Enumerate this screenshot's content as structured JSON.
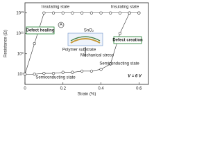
{
  "chart_data": {
    "type": "line",
    "x_label": "Strain (%)",
    "y_label": "Resistance (Ω)",
    "x": [
      0,
      0.05,
      0.1,
      0.15,
      0.2,
      0.25,
      0.3,
      0.35,
      0.4,
      0.45,
      0.5,
      0.55,
      0.6
    ],
    "series": [
      {
        "color": "#333333",
        "values": [
          10000000,
          10000000,
          12000000,
          12000000,
          15000000,
          15000000,
          20000000,
          20000000,
          30000000,
          100000000,
          100000000000,
          10000000000000,
          10000000000000
        ]
      },
      {
        "color": "#333333",
        "values": [
          10000000,
          10000000000,
          10000000000000,
          10000000000000,
          10000000000000,
          10000000000000,
          10000000000000,
          10000000000000,
          10000000000000,
          10000000000000,
          10000000000000,
          10000000000000,
          10000000000000
        ]
      }
    ],
    "log_y": true,
    "xlim": [
      0,
      0.65
    ],
    "xticks": [
      0,
      0.2,
      0.4,
      0.6
    ],
    "ylim": [
      1000000,
      100000000000000
    ],
    "yticks": [
      {
        "value": 10000000,
        "label": "10⁷"
      },
      {
        "value": 1000000000,
        "label": "10⁹"
      },
      {
        "value": 100000000000,
        "label": "10¹¹"
      },
      {
        "value": 10000000000000,
        "label": "10¹³"
      }
    ],
    "annotations": [
      "Insulating state",
      "Insulating state",
      "Defect healing",
      "Defect creation",
      "Semiconducting state",
      "Semiconducting state",
      "V = 6 V",
      "SnO₂",
      "Polymer substrate",
      "Mechanical stress",
      "A"
    ]
  }
}
